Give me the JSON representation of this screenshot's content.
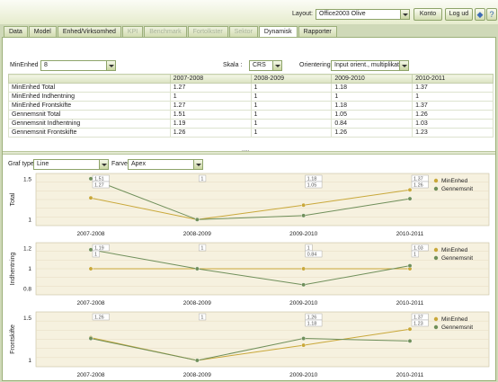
{
  "topbar": {
    "layout_label": "Layout:",
    "layout_value": "Office2003 Olive",
    "konto_label": "Konto",
    "logout_label": "Log ud"
  },
  "tabs": [
    {
      "label": "Data",
      "state": "normal"
    },
    {
      "label": "Model",
      "state": "normal"
    },
    {
      "label": "Enhed/Virksomhed",
      "state": "normal"
    },
    {
      "label": "KPI",
      "state": "disabled"
    },
    {
      "label": "Benchmark",
      "state": "disabled"
    },
    {
      "label": "Fortolkster",
      "state": "disabled"
    },
    {
      "label": "Sektor",
      "state": "disabled"
    },
    {
      "label": "Dynamisk",
      "state": "active"
    },
    {
      "label": "Rapporter",
      "state": "normal"
    }
  ],
  "filters": {
    "minenhed_label": "MinEnhed :",
    "minenhed_value": "8",
    "skala_label": "Skala :",
    "skala_value": "CRS",
    "orientering_label": "Orientering:",
    "orientering_value": "Input orient., multiplikativ"
  },
  "table": {
    "headers": [
      "",
      "2007-2008",
      "2008-2009",
      "2009-2010",
      "2010-2011"
    ],
    "rows": [
      [
        "MinEnhed Total",
        "1.27",
        "1",
        "1.18",
        "1.37"
      ],
      [
        "MinEnhed Indhentning",
        "1",
        "1",
        "1",
        "1"
      ],
      [
        "MinEnhed Frontskifte",
        "1.27",
        "1",
        "1.18",
        "1.37"
      ],
      [
        "Gennemsnit Total",
        "1.51",
        "1",
        "1.05",
        "1.26"
      ],
      [
        "Gennemsnit Indhentning",
        "1.19",
        "1",
        "0.84",
        "1.03"
      ],
      [
        "Gennemsnit Frontskifte",
        "1.26",
        "1",
        "1.26",
        "1.23"
      ]
    ]
  },
  "graph_controls": {
    "graf_type_label": "Graf type",
    "graf_type_value": "Line",
    "farver_label": "Farver",
    "farver_value": "Apex"
  },
  "colors": {
    "minenhed": "#c9a83a",
    "gennemsnit": "#6f8f5a",
    "plot_bg": "#f6f1df",
    "accent": "#9cb07a"
  },
  "chart_data": [
    {
      "type": "line",
      "ylabel": "Total",
      "categories": [
        "2007-2008",
        "2008-2009",
        "2009-2010",
        "2010-2011"
      ],
      "ylim": [
        1,
        1.5
      ],
      "yticks": [
        "1",
        "1.5"
      ],
      "series": [
        {
          "name": "MinEnhed",
          "values": [
            1.27,
            1,
            1.18,
            1.37
          ]
        },
        {
          "name": "Gennemsnit",
          "values": [
            1.51,
            1,
            1.05,
            1.26
          ]
        }
      ],
      "point_labels": [
        {
          "category": "2007-2008",
          "text": "1.51"
        },
        {
          "category": "2007-2008",
          "text": "1.27"
        },
        {
          "category": "2008-2009",
          "text": "1"
        },
        {
          "category": "2009-2010",
          "text": "1.18"
        },
        {
          "category": "2009-2010",
          "text": "1.05"
        },
        {
          "category": "2010-2011",
          "text": "1.37"
        },
        {
          "category": "2010-2011",
          "text": "1.26"
        }
      ]
    },
    {
      "type": "line",
      "ylabel": "Indhentning",
      "categories": [
        "2007-2008",
        "2008-2009",
        "2009-2010",
        "2010-2011"
      ],
      "ylim": [
        0.8,
        1.2
      ],
      "yticks": [
        "0.8",
        "1",
        "1.2"
      ],
      "series": [
        {
          "name": "MinEnhed",
          "values": [
            1,
            1,
            1,
            1
          ]
        },
        {
          "name": "Gennemsnit",
          "values": [
            1.19,
            1,
            0.84,
            1.03
          ]
        }
      ],
      "point_labels": [
        {
          "category": "2007-2008",
          "text": "1.19"
        },
        {
          "category": "2007-2008",
          "text": "1"
        },
        {
          "category": "2008-2009",
          "text": "1"
        },
        {
          "category": "2009-2010",
          "text": "1"
        },
        {
          "category": "2009-2010",
          "text": "0.84"
        },
        {
          "category": "2010-2011",
          "text": "1.03"
        },
        {
          "category": "2010-2011",
          "text": "1"
        }
      ]
    },
    {
      "type": "line",
      "ylabel": "Frontskifte",
      "categories": [
        "2007-2008",
        "2008-2009",
        "2009-2010",
        "2010-2011"
      ],
      "ylim": [
        1,
        1.5
      ],
      "yticks": [
        "1",
        "1.5"
      ],
      "series": [
        {
          "name": "MinEnhed",
          "values": [
            1.27,
            1,
            1.18,
            1.37
          ]
        },
        {
          "name": "Gennemsnit",
          "values": [
            1.26,
            1,
            1.26,
            1.23
          ]
        }
      ],
      "point_labels": [
        {
          "category": "2007-2008",
          "text": "1.26"
        },
        {
          "category": "2008-2009",
          "text": "1"
        },
        {
          "category": "2009-2010",
          "text": "1.26"
        },
        {
          "category": "2009-2010",
          "text": "1.18"
        },
        {
          "category": "2010-2011",
          "text": "1.37"
        },
        {
          "category": "2010-2011",
          "text": "1.23"
        }
      ]
    }
  ]
}
